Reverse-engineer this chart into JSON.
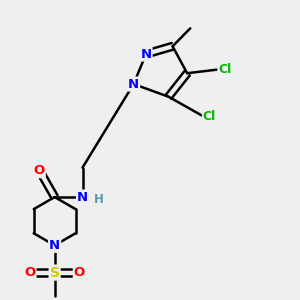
{
  "bg_color": "#efefef",
  "bond_color": "#000000",
  "atom_colors": {
    "N": "#0000ff",
    "O": "#ff0000",
    "Cl": "#00bb00",
    "S": "#cccc00",
    "C": "#000000",
    "H": "#5599aa"
  },
  "figsize": [
    3.0,
    3.0
  ],
  "dpi": 100
}
